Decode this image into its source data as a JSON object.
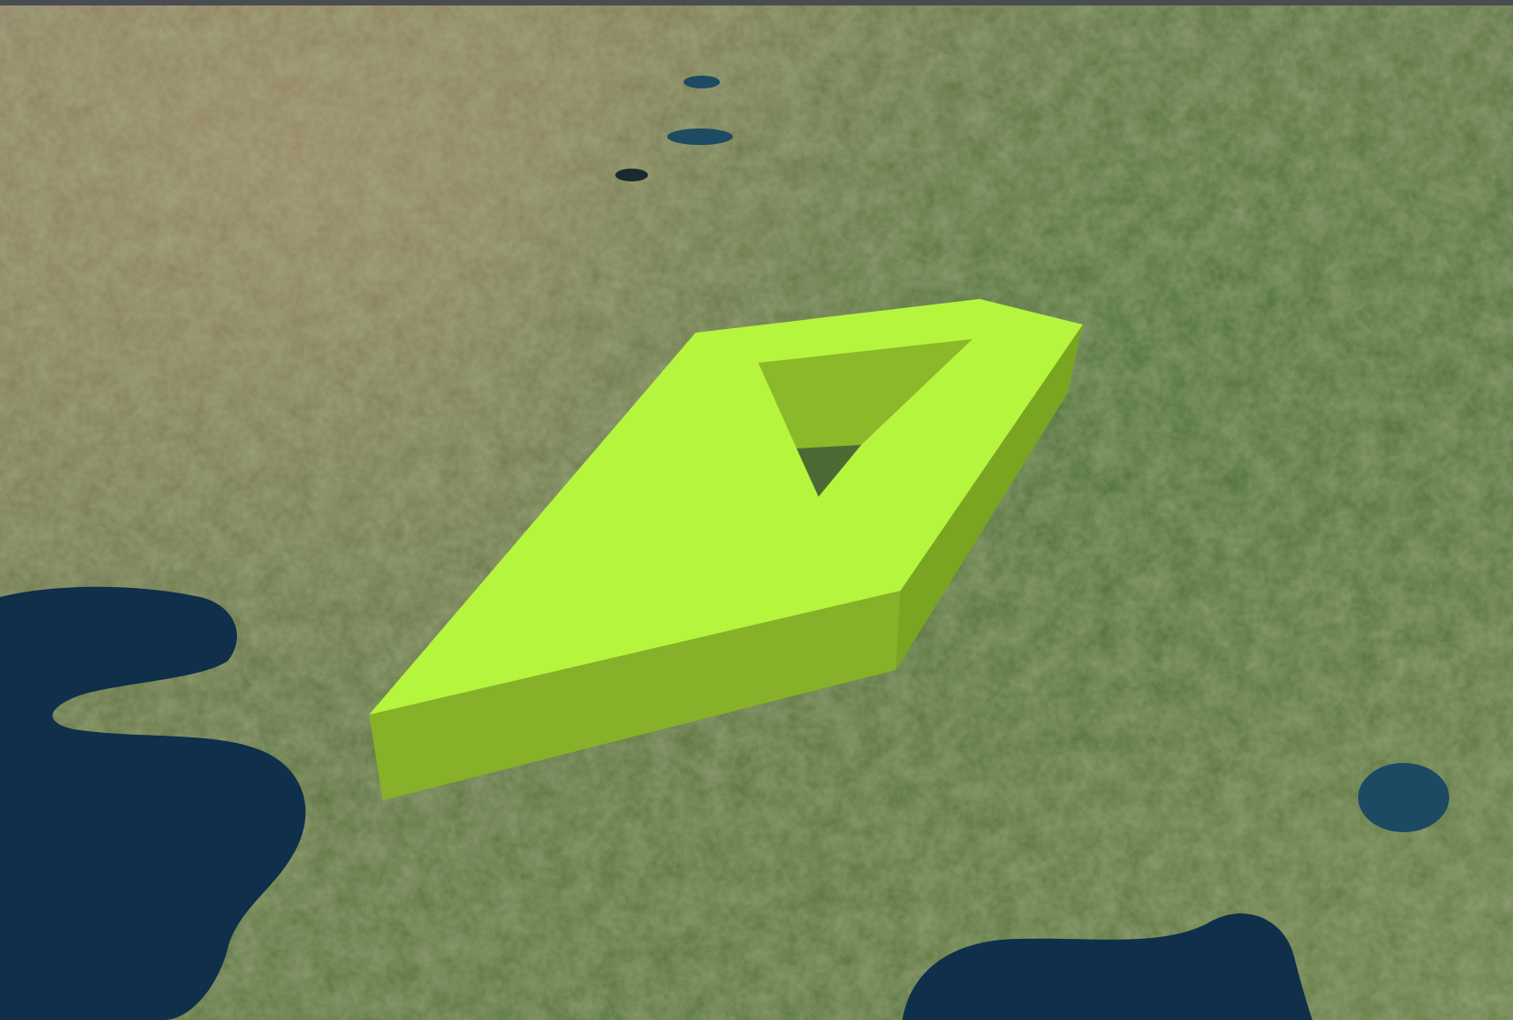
{
  "viewer": {
    "kind": "3d-globe-satellite-view",
    "imagery": "satellite",
    "colors": {
      "extrusion_top": "#b5f53d",
      "extrusion_side_front": "#87b128",
      "extrusion_side_right": "#7aa521",
      "hole_inner_wall": "#8cb92a",
      "sea": "#0f2f4a",
      "land_green": "#4d6b35",
      "land_dry": "#8a7a5a",
      "top_bar": "#4a4d4f"
    },
    "entities": [
      {
        "type": "extruded-polygon-with-hole",
        "outline_vertex_count": 5,
        "hole_vertex_count": 3,
        "fill_color": "#b5f53d"
      }
    ]
  }
}
